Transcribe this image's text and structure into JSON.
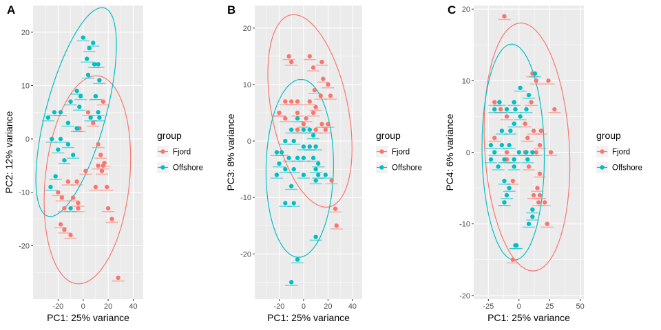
{
  "legend": {
    "title": "group",
    "entries": [
      {
        "name": "Fjord",
        "color": "#F8766D"
      },
      {
        "name": "Offshore",
        "color": "#00BFC4"
      }
    ]
  },
  "chart_data": [
    {
      "type": "scatter",
      "panel": "A",
      "xlabel": "PC1: 25% variance",
      "ylabel": "PC2: 12% variance",
      "xlim": [
        -40,
        48
      ],
      "ylim": [
        -30,
        25
      ],
      "xticks": [
        -20,
        0,
        20,
        40
      ],
      "yticks": [
        -20,
        -10,
        0,
        10,
        20
      ],
      "series": [
        {
          "name": "Fjord",
          "color": "#F8766D",
          "points": [
            [
              4,
              5
            ],
            [
              -3,
              2
            ],
            [
              8,
              3
            ],
            [
              16,
              7
            ],
            [
              10,
              8
            ],
            [
              12,
              -1
            ],
            [
              14,
              -3
            ],
            [
              12,
              -5
            ],
            [
              17,
              -4.5
            ],
            [
              16,
              -5
            ],
            [
              2,
              -6
            ],
            [
              -12,
              -8
            ],
            [
              -5,
              -8
            ],
            [
              10,
              -9
            ],
            [
              15,
              -6
            ],
            [
              19,
              -9
            ],
            [
              -20,
              -10
            ],
            [
              -17,
              -11
            ],
            [
              -8,
              -11
            ],
            [
              -4,
              -13
            ],
            [
              -15,
              -13
            ],
            [
              20,
              -13
            ],
            [
              23,
              -15
            ],
            [
              -18,
              -16
            ],
            [
              -15,
              -17
            ],
            [
              -10,
              -18
            ],
            [
              28,
              -26
            ],
            [
              -4,
              -12
            ]
          ]
        },
        {
          "name": "Offshore",
          "color": "#00BFC4",
          "points": [
            [
              0,
              19
            ],
            [
              8,
              18
            ],
            [
              5,
              17
            ],
            [
              9,
              14
            ],
            [
              3,
              15
            ],
            [
              12,
              14
            ],
            [
              4,
              12
            ],
            [
              13,
              11
            ],
            [
              -5,
              9
            ],
            [
              -2,
              8
            ],
            [
              10,
              8
            ],
            [
              12,
              5
            ],
            [
              -10,
              7
            ],
            [
              -3,
              6
            ],
            [
              6,
              4
            ],
            [
              13,
              4
            ],
            [
              -18,
              5
            ],
            [
              -23,
              5
            ],
            [
              -12,
              3
            ],
            [
              -28,
              4
            ],
            [
              -5,
              2
            ],
            [
              -25,
              0
            ],
            [
              -18,
              0
            ],
            [
              -12,
              -1
            ],
            [
              -20,
              -2
            ],
            [
              -8,
              -3
            ],
            [
              -15,
              -4
            ],
            [
              -22,
              -7
            ],
            [
              -26,
              -9
            ],
            [
              -10,
              -13
            ]
          ]
        }
      ]
    },
    {
      "type": "scatter",
      "panel": "B",
      "xlabel": "PC1: 25% variance",
      "ylabel": "PC3: 8% variance",
      "xlim": [
        -40,
        48
      ],
      "ylim": [
        -28,
        24
      ],
      "xticks": [
        -20,
        0,
        20,
        40
      ],
      "yticks": [
        -20,
        -10,
        0,
        10,
        20
      ],
      "series": [
        {
          "name": "Fjord",
          "color": "#F8766D",
          "points": [
            [
              -12,
              15
            ],
            [
              5,
              15
            ],
            [
              -10,
              14
            ],
            [
              15,
              14
            ],
            [
              8,
              13
            ],
            [
              16,
              11
            ],
            [
              20,
              10
            ],
            [
              9,
              9
            ],
            [
              14,
              8
            ],
            [
              22,
              8
            ],
            [
              -15,
              7
            ],
            [
              -10,
              7
            ],
            [
              -5,
              7
            ],
            [
              5,
              7
            ],
            [
              10,
              6
            ],
            [
              8,
              5
            ],
            [
              -20,
              5
            ],
            [
              -15,
              4
            ],
            [
              2,
              4
            ],
            [
              0,
              3
            ],
            [
              15,
              3
            ],
            [
              18,
              2
            ],
            [
              -5,
              2
            ],
            [
              20,
              3
            ],
            [
              10,
              2
            ],
            [
              -20,
              5
            ],
            [
              23,
              -7
            ],
            [
              26,
              -12
            ],
            [
              27,
              -15
            ],
            [
              -5,
              5
            ]
          ]
        },
        {
          "name": "Offshore",
          "color": "#00BFC4",
          "points": [
            [
              -5,
              4
            ],
            [
              -10,
              2
            ],
            [
              0,
              2
            ],
            [
              5,
              2
            ],
            [
              8,
              1
            ],
            [
              -15,
              0
            ],
            [
              -8,
              0
            ],
            [
              0,
              -1
            ],
            [
              5,
              -1
            ],
            [
              10,
              -1
            ],
            [
              -22,
              -2
            ],
            [
              -18,
              -2
            ],
            [
              -12,
              -3
            ],
            [
              -5,
              -3
            ],
            [
              0,
              -3
            ],
            [
              8,
              -3
            ],
            [
              12,
              -4
            ],
            [
              -20,
              -4
            ],
            [
              -15,
              -5
            ],
            [
              -8,
              -5
            ],
            [
              10,
              -5
            ],
            [
              -22,
              -6
            ],
            [
              0,
              -6
            ],
            [
              12,
              -6
            ],
            [
              18,
              -6
            ],
            [
              -10,
              -8
            ],
            [
              10,
              -7
            ],
            [
              -15,
              -11
            ],
            [
              -8,
              -11
            ],
            [
              10,
              -17
            ],
            [
              -5,
              -21
            ],
            [
              -10,
              -25
            ]
          ]
        }
      ]
    },
    {
      "type": "scatter",
      "panel": "C",
      "xlabel": "PC1: 25% variance",
      "ylabel": "PC4: 6% variance",
      "xlim": [
        -37,
        53
      ],
      "ylim": [
        -20.5,
        20.5
      ],
      "xticks": [
        -25,
        0,
        25,
        50
      ],
      "yticks": [
        -20,
        -10,
        0,
        10,
        20
      ],
      "series": [
        {
          "name": "Fjord",
          "color": "#F8766D",
          "points": [
            [
              -12,
              19
            ],
            [
              11,
              11
            ],
            [
              24,
              10
            ],
            [
              14,
              10
            ],
            [
              -20,
              7
            ],
            [
              10,
              7
            ],
            [
              29,
              6
            ],
            [
              -15,
              6
            ],
            [
              -10,
              5
            ],
            [
              5,
              4
            ],
            [
              12,
              3
            ],
            [
              18,
              3
            ],
            [
              -20,
              2
            ],
            [
              7,
              2
            ],
            [
              17,
              1
            ],
            [
              14,
              0
            ],
            [
              26,
              0
            ],
            [
              -10,
              0
            ],
            [
              5,
              0
            ],
            [
              -10,
              -1
            ],
            [
              8,
              -2
            ],
            [
              17,
              -3
            ],
            [
              -5,
              -4
            ],
            [
              15,
              -5
            ],
            [
              12,
              -6
            ],
            [
              17,
              -6
            ],
            [
              21,
              -7
            ],
            [
              16,
              -7
            ],
            [
              -12,
              -7
            ],
            [
              23,
              -10
            ],
            [
              -5,
              -15
            ]
          ]
        },
        {
          "name": "Offshore",
          "color": "#00BFC4",
          "points": [
            [
              1,
              9
            ],
            [
              13,
              11
            ],
            [
              8,
              8
            ],
            [
              -4,
              7
            ],
            [
              -16,
              7
            ],
            [
              -10,
              6
            ],
            [
              6,
              6
            ],
            [
              -3,
              6
            ],
            [
              -20,
              6
            ],
            [
              1,
              5
            ],
            [
              -4,
              4
            ],
            [
              -14,
              3
            ],
            [
              -7,
              3
            ],
            [
              -23,
              1
            ],
            [
              -14,
              1
            ],
            [
              -8,
              1
            ],
            [
              -20,
              0
            ],
            [
              0,
              0
            ],
            [
              6,
              0
            ],
            [
              11,
              0
            ],
            [
              -4,
              -1
            ],
            [
              -12,
              -1
            ],
            [
              -23,
              -1
            ],
            [
              7,
              -1
            ],
            [
              -4,
              -2
            ],
            [
              -17,
              -2
            ],
            [
              -12,
              -4
            ],
            [
              -8,
              -5
            ],
            [
              -10,
              -6
            ],
            [
              -12,
              -7
            ],
            [
              11,
              -8
            ],
            [
              -2,
              -13
            ],
            [
              -3,
              -13
            ],
            [
              8,
              -10
            ],
            [
              11,
              -9
            ]
          ]
        }
      ]
    }
  ]
}
